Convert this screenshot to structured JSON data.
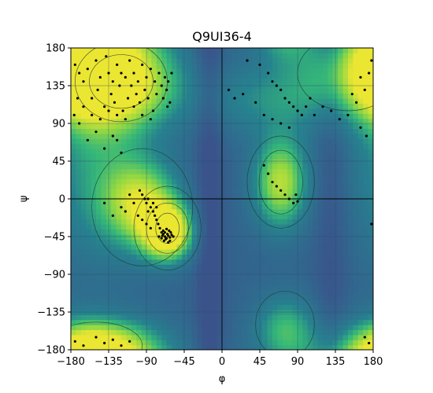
{
  "chart_data": {
    "type": "scatter",
    "title": "Q9UI36-4",
    "xlabel": "φ",
    "ylabel": "ψ",
    "xlim": [
      -180,
      180
    ],
    "ylim": [
      -180,
      180
    ],
    "xticks": [
      -180,
      -135,
      -90,
      -45,
      0,
      45,
      90,
      135,
      180
    ],
    "yticks": [
      -180,
      -135,
      -90,
      -45,
      0,
      45,
      90,
      135,
      180
    ],
    "grid": true,
    "background": "Ramachandran density (viridis), with contour lines",
    "colors": {
      "marker": "#000000",
      "gridline": "#2a4b6b",
      "contour": "#1e3a2e",
      "origin_line": "#000000"
    },
    "series": [
      {
        "values": [
          [
            -175,
            160
          ],
          [
            -170,
            150
          ],
          [
            -165,
            140
          ],
          [
            -160,
            155
          ],
          [
            -155,
            120
          ],
          [
            -150,
            165
          ],
          [
            -148,
            130
          ],
          [
            -145,
            145
          ],
          [
            -140,
            110
          ],
          [
            -138,
            170
          ],
          [
            -135,
            150
          ],
          [
            -132,
            125
          ],
          [
            -130,
            140
          ],
          [
            -128,
            115
          ],
          [
            -125,
            160
          ],
          [
            -122,
            135
          ],
          [
            -120,
            150
          ],
          [
            -118,
            105
          ],
          [
            -115,
            145
          ],
          [
            -112,
            120
          ],
          [
            -110,
            165
          ],
          [
            -108,
            135
          ],
          [
            -105,
            150
          ],
          [
            -102,
            125
          ],
          [
            -100,
            140
          ],
          [
            -98,
            115
          ],
          [
            -95,
            160
          ],
          [
            -92,
            130
          ],
          [
            -90,
            145
          ],
          [
            -88,
            120
          ],
          [
            -85,
            155
          ],
          [
            -82,
            105
          ],
          [
            -80,
            140
          ],
          [
            -78,
            125
          ],
          [
            -75,
            150
          ],
          [
            -72,
            135
          ],
          [
            -70,
            120
          ],
          [
            -68,
            145
          ],
          [
            -66,
            130
          ],
          [
            -64,
            140
          ],
          [
            -62,
            115
          ],
          [
            -60,
            150
          ],
          [
            -65,
            110
          ],
          [
            -85,
            95
          ],
          [
            -95,
            100
          ],
          [
            -105,
            110
          ],
          [
            -115,
            95
          ],
          [
            -125,
            100
          ],
          [
            -135,
            105
          ],
          [
            -145,
            95
          ],
          [
            -155,
            100
          ],
          [
            -165,
            110
          ],
          [
            -172,
            120
          ],
          [
            -176,
            100
          ],
          [
            -150,
            80
          ],
          [
            -160,
            70
          ],
          [
            -140,
            60
          ],
          [
            -130,
            75
          ],
          [
            -120,
            55
          ],
          [
            -170,
            90
          ],
          [
            -125,
            70
          ],
          [
            -98,
            10
          ],
          [
            -95,
            5
          ],
          [
            -92,
            0
          ],
          [
            -90,
            -5
          ],
          [
            -88,
            0
          ],
          [
            -85,
            -10
          ],
          [
            -82,
            -15
          ],
          [
            -80,
            -20
          ],
          [
            -78,
            -25
          ],
          [
            -76,
            -30
          ],
          [
            -74,
            -35
          ],
          [
            -72,
            -40
          ],
          [
            -70,
            -42
          ],
          [
            -68,
            -45
          ],
          [
            -66,
            -47
          ],
          [
            -64,
            -44
          ],
          [
            -62,
            -46
          ],
          [
            -61,
            -40
          ],
          [
            -63,
            -38
          ],
          [
            -65,
            -42
          ],
          [
            -67,
            -48
          ],
          [
            -69,
            -50
          ],
          [
            -71,
            -44
          ],
          [
            -66,
            -36
          ],
          [
            -60,
            -43
          ],
          [
            -58,
            -45
          ],
          [
            -64,
            -52
          ],
          [
            -68,
            -40
          ],
          [
            -72,
            -47
          ],
          [
            -62,
            -50
          ],
          [
            -70,
            -38
          ],
          [
            -75,
            -45
          ],
          [
            -110,
            5
          ],
          [
            -105,
            -5
          ],
          [
            -115,
            -15
          ],
          [
            -100,
            -20
          ],
          [
            -95,
            -25
          ],
          [
            -90,
            -30
          ],
          [
            -85,
            -35
          ],
          [
            -120,
            -10
          ],
          [
            -130,
            -20
          ],
          [
            -140,
            -5
          ],
          [
            -78,
            -10
          ],
          [
            -82,
            -5
          ],
          [
            -88,
            -15
          ],
          [
            30,
            165
          ],
          [
            45,
            160
          ],
          [
            55,
            150
          ],
          [
            60,
            140
          ],
          [
            65,
            135
          ],
          [
            70,
            130
          ],
          [
            75,
            120
          ],
          [
            80,
            115
          ],
          [
            85,
            110
          ],
          [
            90,
            105
          ],
          [
            95,
            100
          ],
          [
            100,
            110
          ],
          [
            105,
            120
          ],
          [
            110,
            100
          ],
          [
            120,
            110
          ],
          [
            130,
            105
          ],
          [
            140,
            95
          ],
          [
            150,
            100
          ],
          [
            160,
            115
          ],
          [
            170,
            130
          ],
          [
            175,
            150
          ],
          [
            178,
            165
          ],
          [
            165,
            145
          ],
          [
            155,
            125
          ],
          [
            8,
            130
          ],
          [
            15,
            120
          ],
          [
            25,
            125
          ],
          [
            40,
            115
          ],
          [
            50,
            100
          ],
          [
            60,
            95
          ],
          [
            70,
            90
          ],
          [
            80,
            85
          ],
          [
            165,
            85
          ],
          [
            172,
            75
          ],
          [
            55,
            30
          ],
          [
            60,
            20
          ],
          [
            65,
            15
          ],
          [
            70,
            10
          ],
          [
            75,
            5
          ],
          [
            80,
            0
          ],
          [
            85,
            -5
          ],
          [
            88,
            5
          ],
          [
            90,
            -3
          ],
          [
            50,
            40
          ],
          [
            -175,
            -170
          ],
          [
            -165,
            -175
          ],
          [
            -150,
            -165
          ],
          [
            -140,
            -172
          ],
          [
            -130,
            -168
          ],
          [
            -120,
            -175
          ],
          [
            -110,
            -170
          ],
          [
            170,
            -165
          ],
          [
            175,
            -172
          ],
          [
            178,
            -30
          ]
        ]
      }
    ]
  }
}
